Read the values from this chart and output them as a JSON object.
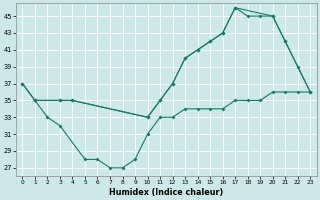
{
  "xlabel": "Humidex (Indice chaleur)",
  "bg_color": "#cce8e8",
  "grid_color": "#ffffff",
  "line_color": "#1a7a6a",
  "xlim": [
    -0.5,
    23.5
  ],
  "ylim": [
    26.0,
    46.5
  ],
  "xticks": [
    0,
    1,
    2,
    3,
    4,
    5,
    6,
    7,
    8,
    9,
    10,
    11,
    12,
    13,
    14,
    15,
    16,
    17,
    18,
    19,
    20,
    21,
    22,
    23
  ],
  "yticks": [
    27,
    29,
    31,
    33,
    35,
    37,
    39,
    41,
    43,
    45
  ],
  "line1_x": [
    0,
    1,
    3,
    4,
    10,
    11,
    12,
    13,
    14,
    15,
    16,
    17,
    20,
    21,
    23
  ],
  "line1_y": [
    37,
    35,
    35,
    35,
    33,
    35,
    37,
    40,
    41,
    42,
    43,
    46,
    45,
    42,
    36
  ],
  "line2_x": [
    0,
    1,
    3,
    4,
    10,
    11,
    12,
    13,
    14,
    15,
    16,
    17,
    18,
    19,
    20,
    21,
    22,
    23
  ],
  "line2_y": [
    37,
    35,
    35,
    35,
    33,
    35,
    37,
    40,
    41,
    42,
    43,
    46,
    45,
    45,
    45,
    42,
    39,
    36
  ],
  "line3_x": [
    1,
    2,
    3,
    5,
    6,
    7,
    8,
    9,
    10,
    11,
    12,
    13,
    14,
    15,
    16,
    17,
    18,
    19,
    20,
    21,
    22,
    23
  ],
  "line3_y": [
    35,
    33,
    32,
    28,
    28,
    27,
    27,
    28,
    31,
    33,
    33,
    34,
    34,
    34,
    34,
    35,
    35,
    35,
    36,
    36,
    36,
    36
  ]
}
